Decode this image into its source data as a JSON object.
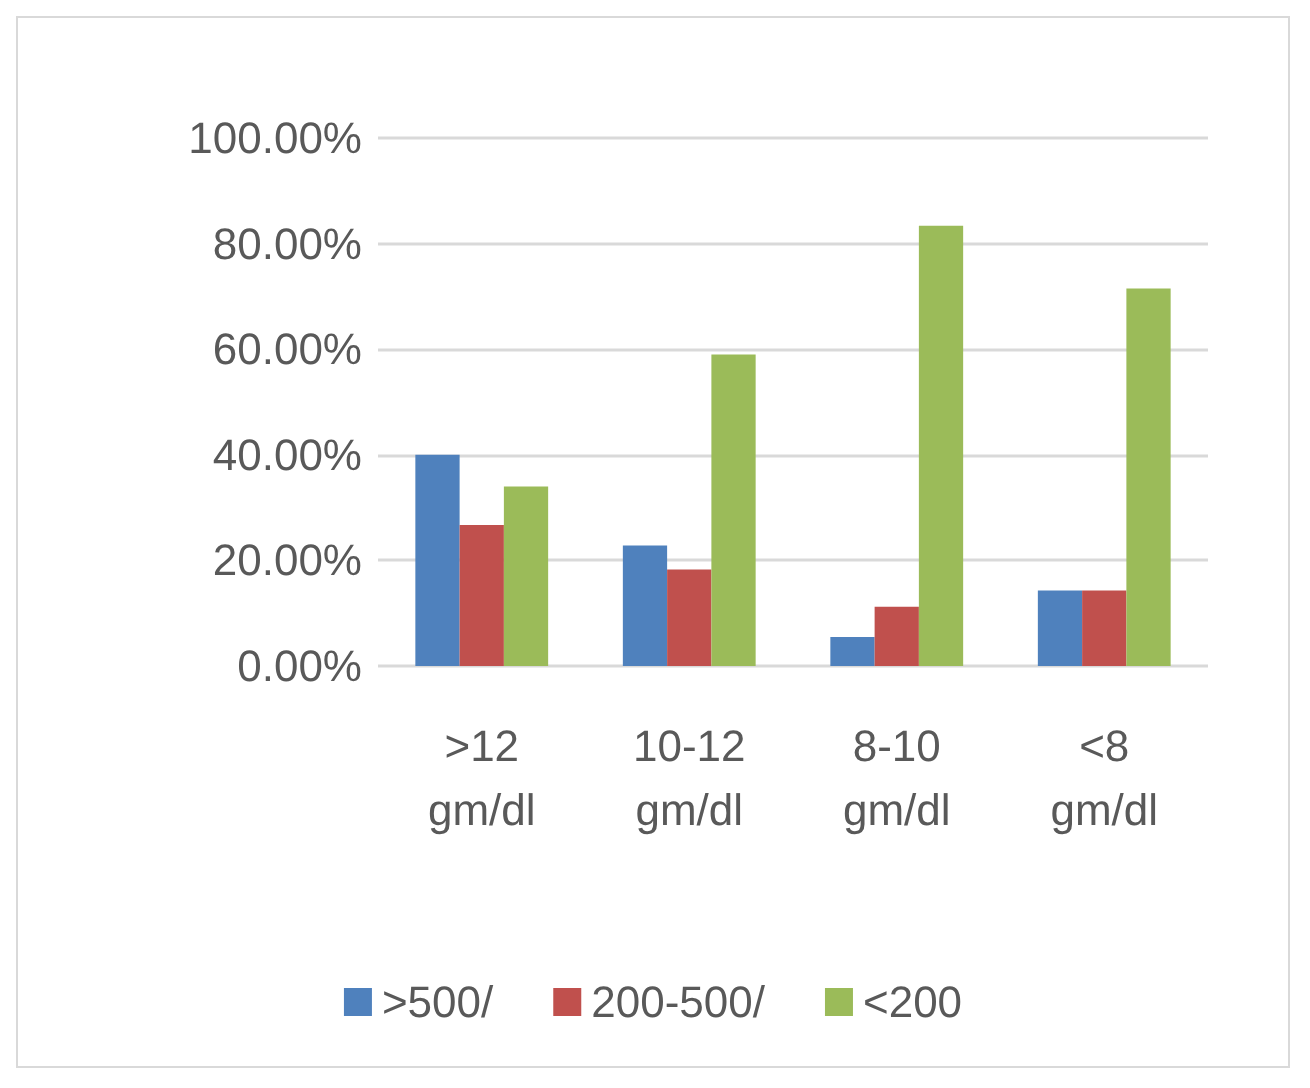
{
  "chart_data": {
    "type": "bar",
    "categories": [
      ">12\ngm/dl",
      "10-12\ngm/dl",
      "8-10\ngm/dl",
      "<8\ngm/dl"
    ],
    "series": [
      {
        "name": ">500/",
        "color": "#4f81bd",
        "values": [
          40,
          22.8,
          5.5,
          14.3
        ]
      },
      {
        "name": "200-500/",
        "color": "#c0504d",
        "values": [
          26.7,
          18.3,
          11.2,
          14.3
        ]
      },
      {
        "name": "<200",
        "color": "#9bbb59",
        "values": [
          34,
          59,
          83.4,
          71.5
        ]
      }
    ],
    "ylim": [
      0,
      100
    ],
    "yticks": [
      {
        "value": 0,
        "label": "0.00%"
      },
      {
        "value": 20,
        "label": "20.00%"
      },
      {
        "value": 40,
        "label": "40.00%"
      },
      {
        "value": 60,
        "label": "60.00%"
      },
      {
        "value": 80,
        "label": "80.00%"
      },
      {
        "value": 100,
        "label": "100.00%"
      }
    ],
    "grid": "y",
    "legend": "bottom"
  }
}
